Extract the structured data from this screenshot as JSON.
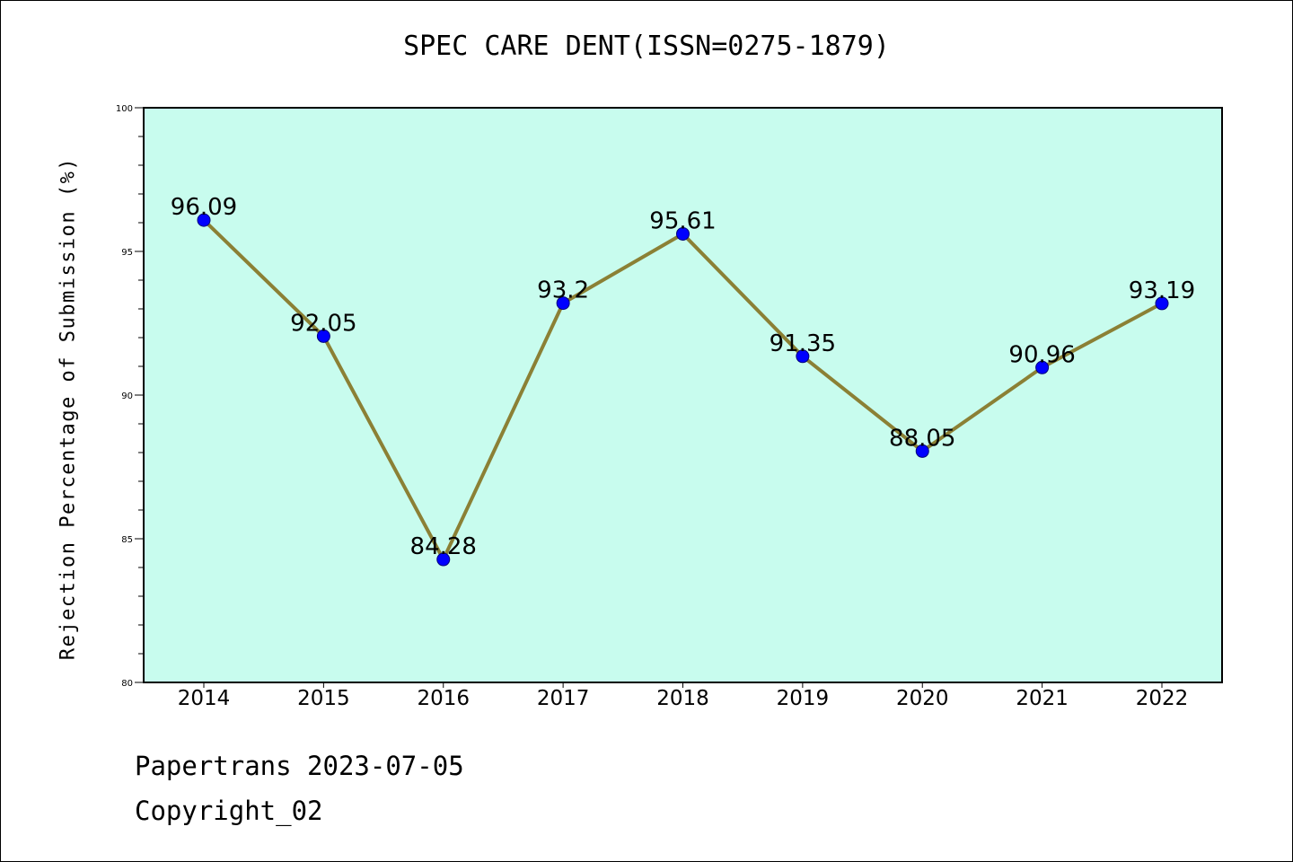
{
  "chart_data": {
    "type": "line",
    "title": "SPEC CARE DENT(ISSN=0275-1879)",
    "xlabel": "",
    "ylabel": "Rejection Percentage of Submission (%)",
    "ylim": [
      80,
      100
    ],
    "yticks": [
      80,
      85,
      90,
      95,
      100
    ],
    "categories": [
      "2014",
      "2015",
      "2016",
      "2017",
      "2018",
      "2019",
      "2020",
      "2021",
      "2022"
    ],
    "series": [
      {
        "values": [
          96.09,
          92.05,
          84.28,
          93.2,
          95.61,
          91.35,
          88.05,
          90.96,
          93.19
        ],
        "labels": [
          "96.09",
          "92.05",
          "84.28",
          "93.2",
          "95.61",
          "91.35",
          "88.05",
          "90.96",
          "93.19"
        ],
        "line_color": "#8b8035",
        "marker_color": "#0000ff"
      }
    ],
    "plot_background": "#c8fcee",
    "grid": false,
    "legend": "none"
  },
  "footer": {
    "line1": "Papertrans 2023-07-05",
    "line2": "Copyright_02"
  }
}
